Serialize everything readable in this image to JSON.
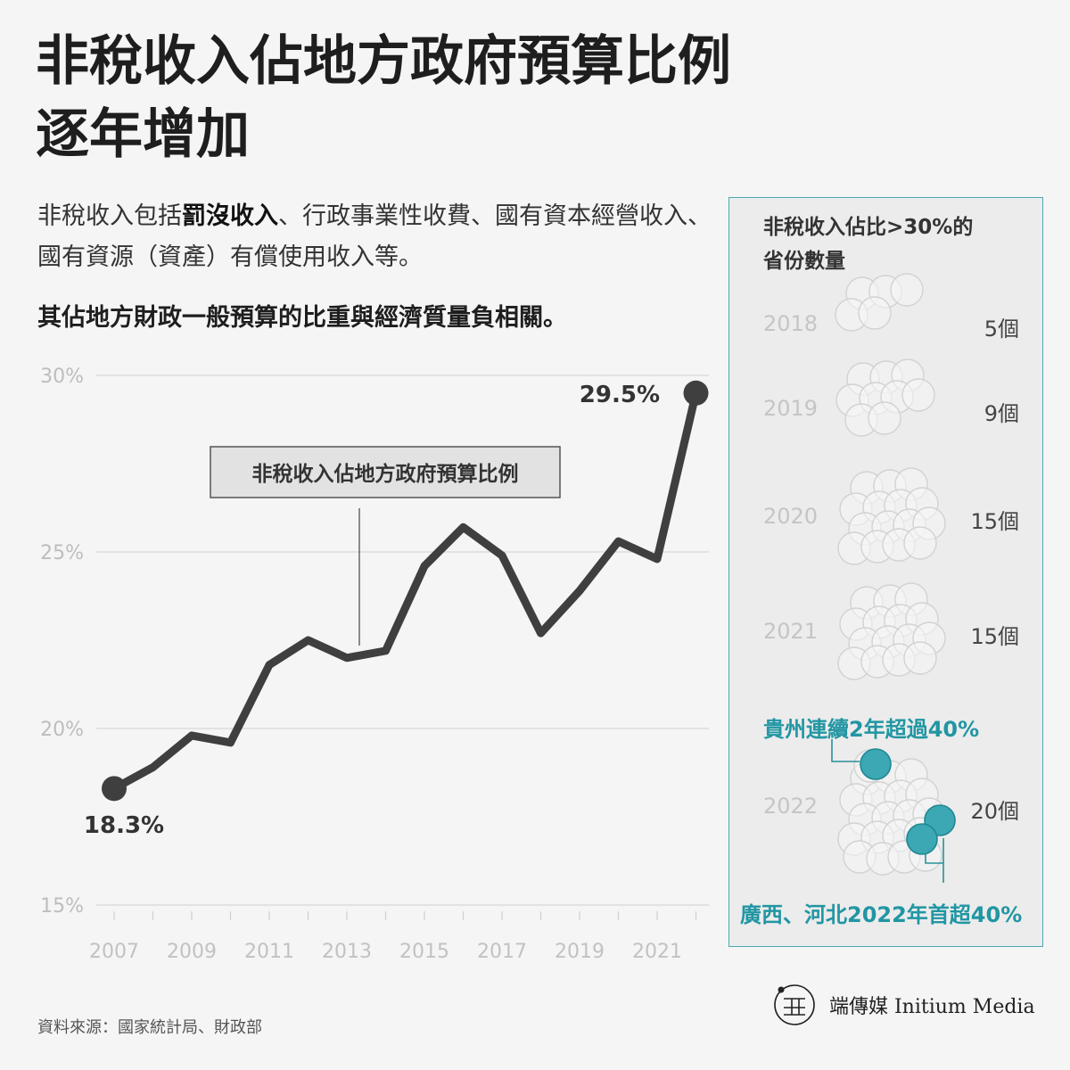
{
  "title_line1": "非稅收入佔地方政府預算比例",
  "title_line2": "逐年增加",
  "intro": {
    "part1": "非稅收入包括",
    "bold": "罰沒收入",
    "part2": "、行政事業性收費、國有資本經營收入、國有資源（資產）有償使用收入等。"
  },
  "lead": "其佔地方財政一般預算的比重與經濟質量負相關。",
  "chart_data": {
    "type": "line",
    "legend_label": "非稅收入佔地方政府預算比例",
    "x": [
      2007,
      2008,
      2009,
      2010,
      2011,
      2012,
      2013,
      2014,
      2015,
      2016,
      2017,
      2018,
      2019,
      2020,
      2021,
      2022
    ],
    "y": [
      18.3,
      18.9,
      19.8,
      19.6,
      21.8,
      22.5,
      22.0,
      22.2,
      24.6,
      25.7,
      24.9,
      22.7,
      23.9,
      25.3,
      24.8,
      29.5
    ],
    "x_tick_labels": [
      "2007",
      "2009",
      "2011",
      "2013",
      "2015",
      "2017",
      "2019",
      "2021"
    ],
    "y_ticks": [
      15,
      20,
      25,
      30
    ],
    "y_tick_labels": [
      "15%",
      "20%",
      "25%",
      "30%"
    ],
    "ylim": [
      15,
      30
    ],
    "start_label": "18.3%",
    "end_label": "29.5%",
    "grid": true,
    "line_color": "#3f3f3f"
  },
  "side": {
    "title_line1": "非稅收入佔比>30%的",
    "title_line2": "省份數量",
    "rows": [
      {
        "year": "2018",
        "count_label": "5個",
        "count": 5
      },
      {
        "year": "2019",
        "count_label": "9個",
        "count": 9
      },
      {
        "year": "2020",
        "count_label": "15個",
        "count": 15
      },
      {
        "year": "2021",
        "count_label": "15個",
        "count": 15
      },
      {
        "year": "2022",
        "count_label": "20個",
        "count": 20,
        "highlighted": 3
      }
    ],
    "note_top": "貴州連續2年超過40%",
    "note_bottom": "廣西、河北2022年首超40%",
    "accent_color": "#3ba8b3"
  },
  "source": "資料來源：國家統計局、財政部",
  "brand": {
    "text": "端傳媒 Initium Media"
  }
}
